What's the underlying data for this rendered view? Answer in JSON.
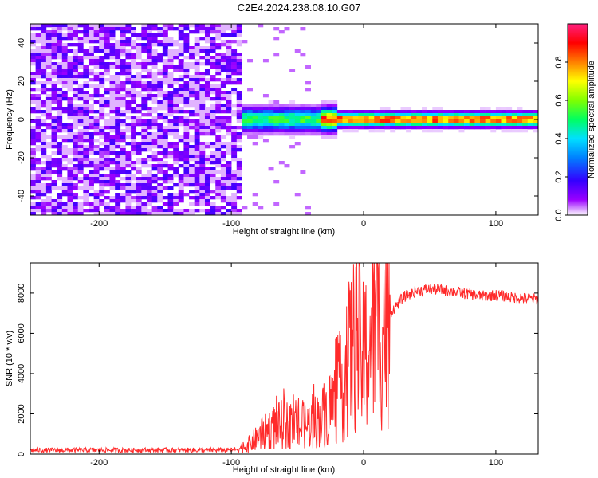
{
  "title": "C2E4.2024.238.08.10.G07",
  "chart_data": [
    {
      "type": "heatmap",
      "xlabel": "Height of straight line (km)",
      "ylabel": "Frequency (Hz)",
      "xlim": [
        -252,
        132
      ],
      "ylim": [
        -50,
        50
      ],
      "xticks": [
        -200,
        -100,
        0,
        100
      ],
      "xtick_labels": [
        "-200",
        "-100",
        "0",
        "100"
      ],
      "yticks": [
        -40,
        -20,
        0,
        20,
        40
      ],
      "ytick_labels": [
        "-40",
        "-20",
        "0",
        "20",
        "40"
      ],
      "colorbar": {
        "label": "Normalized spectral amplitude",
        "range": [
          0.0,
          1.0
        ],
        "ticks": [
          0.0,
          0.2,
          0.4,
          0.6,
          0.8
        ],
        "tick_labels": [
          "0.0",
          "0.2",
          "0.4",
          "0.6",
          "0.8"
        ],
        "colormap": [
          "#ffffff",
          "#9a00ff",
          "#3300ff",
          "#0080ff",
          "#00e0ff",
          "#00ff60",
          "#80ff00",
          "#ffff00",
          "#ff8000",
          "#ff0000",
          "#ff2080"
        ]
      },
      "regions": [
        {
          "name": "noise",
          "x_range": [
            -252,
            -92
          ],
          "freq_range": [
            -50,
            50
          ],
          "amplitude_range": [
            0.05,
            0.2
          ]
        },
        {
          "name": "signal-line",
          "x_range": [
            -92,
            132
          ],
          "center_freq": 0,
          "amplitude_range": [
            0.2,
            0.95
          ]
        }
      ]
    },
    {
      "type": "line",
      "xlabel": "Height of straight line (km)",
      "ylabel": "SNR (10 * v/v)",
      "xlim": [
        -252,
        132
      ],
      "ylim": [
        0,
        9500
      ],
      "xticks": [
        -200,
        -100,
        0,
        100
      ],
      "xtick_labels": [
        "-200",
        "-100",
        "0",
        "100"
      ],
      "yticks": [
        0,
        2000,
        4000,
        6000,
        8000
      ],
      "ytick_labels": [
        "0",
        "2000",
        "4000",
        "6000",
        "8000"
      ],
      "grid": false,
      "series": [
        {
          "color": "#ff2a2a",
          "x": [
            -252,
            -150,
            -100,
            -90,
            -80,
            -70,
            -60,
            -50,
            -40,
            -30,
            -20,
            -15,
            -10,
            -5,
            0,
            5,
            10,
            15,
            20,
            30,
            40,
            50,
            60,
            70,
            80,
            90,
            100,
            110,
            120,
            132
          ],
          "y": [
            200,
            200,
            200,
            350,
            800,
            1300,
            1500,
            1300,
            1500,
            1900,
            2800,
            3600,
            5000,
            5700,
            4600,
            5800,
            6500,
            6600,
            7000,
            7800,
            8100,
            8200,
            8150,
            8050,
            7950,
            7850,
            7900,
            7800,
            7750,
            7700
          ]
        }
      ]
    }
  ]
}
